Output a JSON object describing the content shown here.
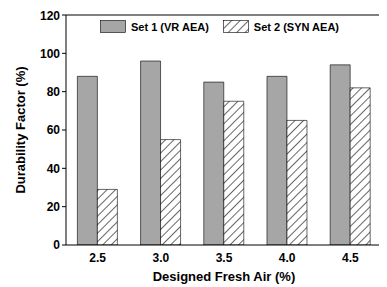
{
  "chart_data": {
    "type": "bar",
    "categories": [
      "2.5",
      "3.0",
      "3.5",
      "4.0",
      "4.5"
    ],
    "series": [
      {
        "name": "Set 1 (VR AEA)",
        "color": "#a6a6a6",
        "values": [
          88,
          96,
          85,
          88,
          94
        ]
      },
      {
        "name": "Set 2 (SYN AEA)",
        "color": "#404040",
        "marker": "hatch",
        "values": [
          29,
          55,
          75,
          65,
          82
        ]
      }
    ],
    "x_label": "Designed Fresh Air (%)",
    "y_label": "Durability Factor (%)",
    "ylim": [
      0,
      120
    ],
    "yticks": [
      0,
      20,
      40,
      60,
      80,
      100,
      120
    ],
    "legend": "top",
    "grid": false
  }
}
